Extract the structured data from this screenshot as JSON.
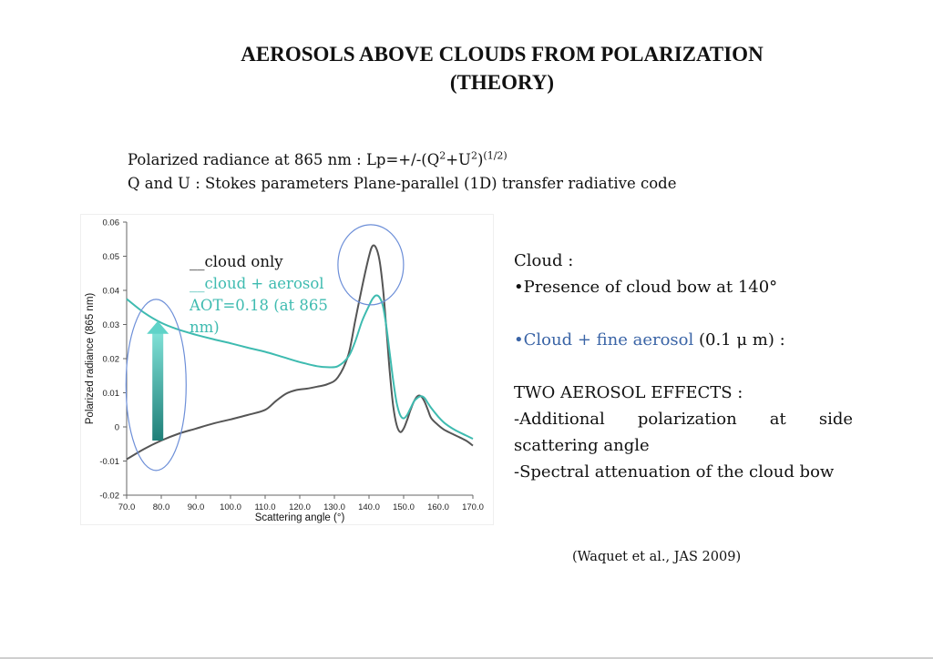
{
  "title": {
    "line1": "AEROSOLS ABOVE CLOUDS FROM POLARIZATION",
    "line2": "(THEORY)"
  },
  "formula": {
    "prefix": "Polarized radiance at 865 nm : Lp=+/-(Q",
    "sup1": "2",
    "mid": "+U",
    "sup2": "2",
    "close": ")",
    "sup3": "(1/2)",
    "line2": "Q and U : Stokes parameters Plane-parallel (1D) transfer radiative code"
  },
  "legend": {
    "cloud_only": "__cloud only",
    "cloud_aerosol": "__cloud + aerosol",
    "aot": "AOT=0.18 (at 865 nm)"
  },
  "right_panel": {
    "cloud_heading": "Cloud :",
    "cloud_bullet": "•Presence of cloud bow at 140°",
    "aerosol_colored": "•Cloud + fine aerosol",
    "aerosol_rest": " (0.1 μ m) :",
    "effects_heading": "TWO AEROSOL EFFECTS :",
    "effect1": "-Additional polarization at side scattering angle",
    "effect2": "-Spectral attenuation of the cloud bow"
  },
  "citation": "(Waquet et al., JAS 2009)",
  "colors": {
    "cloud_only": "#555555",
    "cloud_aerosol": "#3ebbb0",
    "ellipse": "#6d8fd8",
    "arrow": "#2a9d94"
  },
  "chart_data": {
    "type": "line",
    "xlabel": "Scattering angle (°)",
    "ylabel": "Polarized radiance (865 nm)",
    "xlim": [
      70,
      170
    ],
    "ylim": [
      -0.02,
      0.06
    ],
    "xticks": [
      "70.0",
      "80.0",
      "90.0",
      "100.0",
      "110.0",
      "120.0",
      "130.0",
      "140.0",
      "150.0",
      "160.0",
      "170.0"
    ],
    "yticks": [
      "0.06",
      "0.05",
      "0.04",
      "0.03",
      "0.02",
      "0.01",
      "0",
      "-0.01",
      "-0.02"
    ],
    "series": [
      {
        "name": "cloud only",
        "x": [
          70,
          75,
          80,
          85,
          90,
          95,
          100,
          105,
          110,
          113,
          116,
          119,
          122,
          125,
          128,
          131,
          134,
          136,
          138,
          140,
          141,
          142,
          143,
          144,
          145,
          146,
          147,
          148,
          149,
          150,
          151,
          152,
          153,
          154,
          155,
          156,
          157,
          158,
          160,
          162,
          165,
          168,
          170
        ],
        "y": [
          -0.0095,
          -0.0065,
          -0.004,
          -0.002,
          -0.0005,
          0.001,
          0.0022,
          0.0035,
          0.005,
          0.0075,
          0.0097,
          0.0108,
          0.0112,
          0.0118,
          0.0125,
          0.0145,
          0.021,
          0.031,
          0.041,
          0.05,
          0.053,
          0.0525,
          0.049,
          0.041,
          0.029,
          0.016,
          0.006,
          0.0005,
          -0.0015,
          -0.0005,
          0.002,
          0.005,
          0.0075,
          0.009,
          0.009,
          0.0075,
          0.005,
          0.0025,
          0.0005,
          -0.001,
          -0.0025,
          -0.004,
          -0.0055
        ]
      },
      {
        "name": "cloud + aerosol",
        "x": [
          70,
          75,
          80,
          85,
          90,
          95,
          100,
          105,
          110,
          115,
          120,
          125,
          128,
          131,
          134,
          136,
          138,
          140,
          141,
          142,
          143,
          144,
          145,
          146,
          147,
          148,
          149,
          150,
          151,
          152,
          153,
          154,
          155,
          156,
          157,
          158,
          160,
          162,
          165,
          168,
          170
        ],
        "y": [
          0.0375,
          0.0335,
          0.0305,
          0.0285,
          0.027,
          0.0257,
          0.0245,
          0.0232,
          0.022,
          0.0205,
          0.019,
          0.0178,
          0.0175,
          0.0178,
          0.0205,
          0.025,
          0.031,
          0.0355,
          0.0375,
          0.0385,
          0.038,
          0.0355,
          0.0295,
          0.0215,
          0.0135,
          0.007,
          0.0035,
          0.0025,
          0.0035,
          0.0055,
          0.0075,
          0.0085,
          0.009,
          0.0085,
          0.007,
          0.0055,
          0.003,
          0.001,
          -0.001,
          -0.0025,
          -0.0035
        ]
      }
    ],
    "annotations": [
      "ellipse around 70-84° side scattering region",
      "upward arrow near 80°",
      "ellipse around cloud bow peak ~140°"
    ],
    "grid": false,
    "legend_position": "top-center"
  }
}
